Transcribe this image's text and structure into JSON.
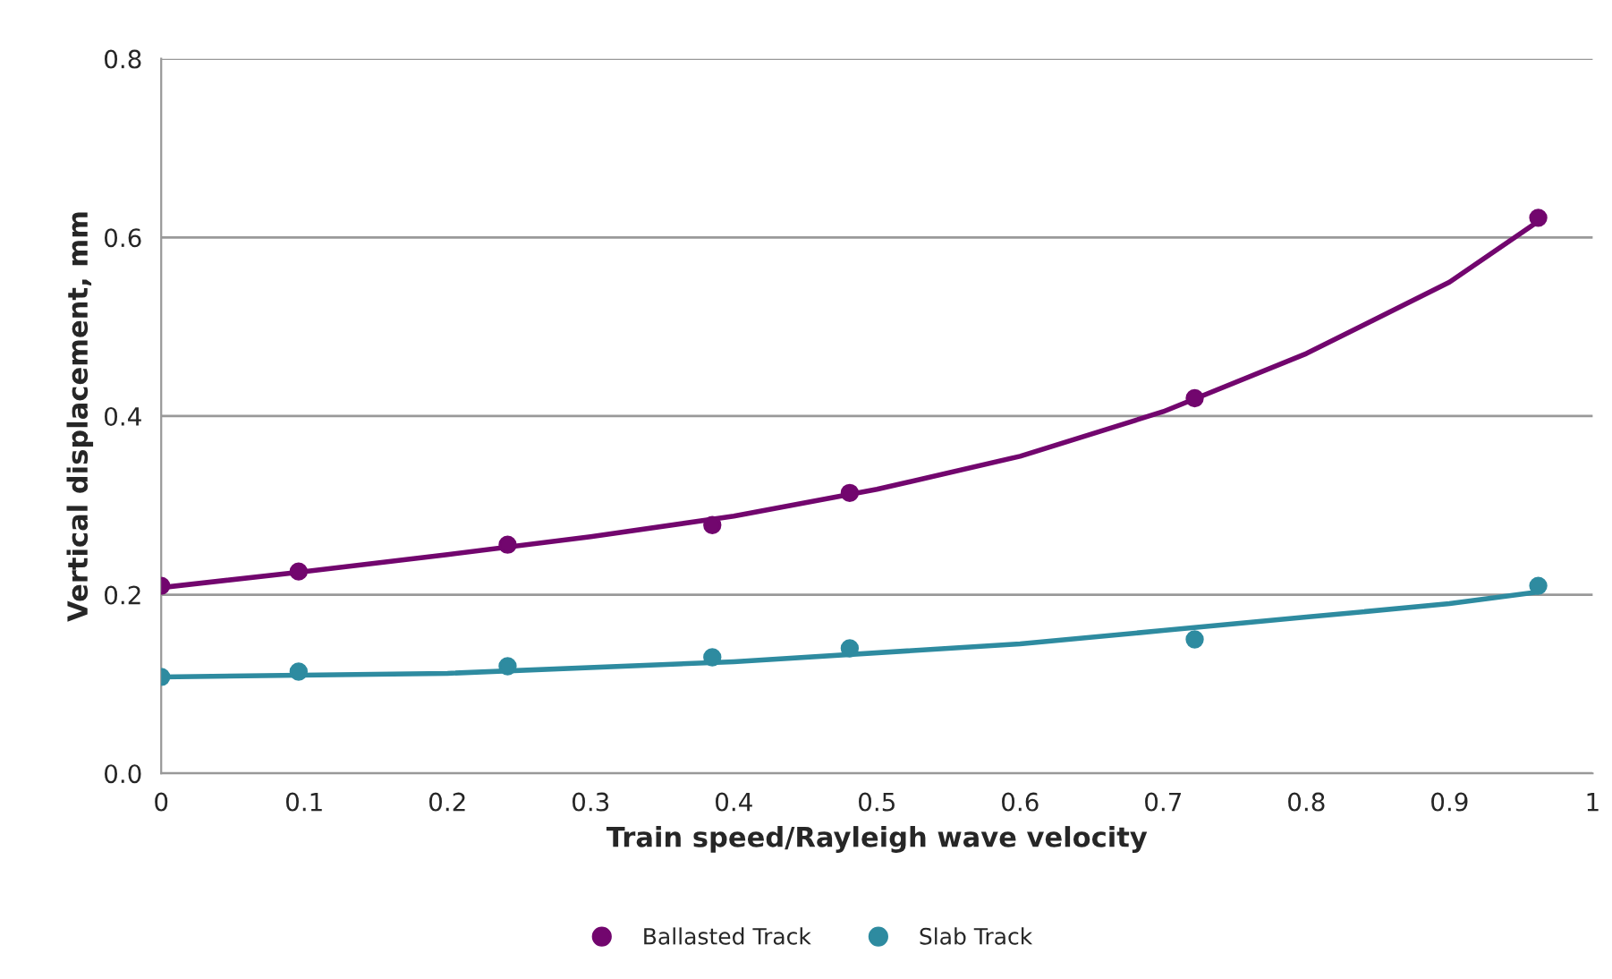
{
  "chart_data": {
    "type": "scatter",
    "xlabel": "Train speed/Rayleigh wave velocity",
    "ylabel": "Vertical displacement, mm",
    "xlim": [
      0,
      1
    ],
    "xticks": [
      0,
      0.1,
      0.2,
      0.3,
      0.4,
      0.5,
      0.6,
      0.7,
      0.8,
      0.9,
      1
    ],
    "ylim": [
      0,
      0.8
    ],
    "yticks": [
      {
        "value": 0,
        "label": "0.0"
      },
      0.2,
      0.4,
      0.6,
      0.8
    ],
    "grid": "y",
    "legend": "bottom",
    "marker": "circle",
    "series": [
      {
        "name": "Ballasted Track",
        "color": "#72066e",
        "x": [
          0,
          0.096,
          0.242,
          0.385,
          0.481,
          0.722,
          0.962
        ],
        "values": [
          0.21,
          0.226,
          0.256,
          0.278,
          0.314,
          0.42,
          0.622
        ]
      },
      {
        "name": "Slab Track",
        "color": "#2e8ba0",
        "x": [
          0,
          0.096,
          0.242,
          0.385,
          0.481,
          0.722,
          0.962
        ],
        "values": [
          0.108,
          0.114,
          0.12,
          0.13,
          0.14,
          0.15,
          0.21
        ]
      },
      {
        "type": "line",
        "marker": "none",
        "color": "#72066e",
        "x": [
          0,
          0.1,
          0.2,
          0.3,
          0.4,
          0.5,
          0.6,
          0.7,
          0.8,
          0.9,
          0.962
        ],
        "values": [
          0.208,
          0.226,
          0.245,
          0.265,
          0.288,
          0.318,
          0.355,
          0.405,
          0.47,
          0.55,
          0.618
        ]
      },
      {
        "type": "line",
        "marker": "none",
        "color": "#2e8ba0",
        "x": [
          0,
          0.2,
          0.4,
          0.6,
          0.7,
          0.8,
          0.9,
          0.962
        ],
        "values": [
          0.108,
          0.112,
          0.125,
          0.145,
          0.16,
          0.175,
          0.19,
          0.203
        ]
      }
    ]
  }
}
